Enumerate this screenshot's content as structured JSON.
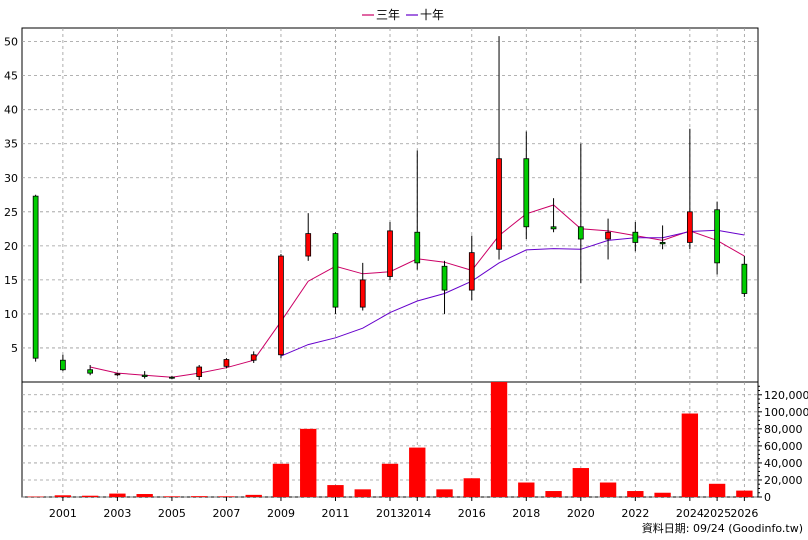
{
  "legend": [
    {
      "label": "三年",
      "color": "#cc0066"
    },
    {
      "label": "十年",
      "color": "#6600cc"
    }
  ],
  "footer_text": "資料日期: 09/24 (Goodinfo.tw)",
  "colors": {
    "up_candle": "#ff0000",
    "down_candle": "#00cc00",
    "volume_bar": "#ff0000",
    "grid": "#999999",
    "axis": "#000000"
  },
  "chart_data": [
    {
      "type": "candlestick",
      "y_ticks": [
        5,
        10,
        15,
        20,
        25,
        30,
        35,
        40,
        45,
        50
      ],
      "ylim": [
        0,
        52
      ],
      "grid": true,
      "legend_position": "top-center",
      "x_tick_labels": [
        {
          "label": "2001",
          "idx": 1
        },
        {
          "label": "2003",
          "idx": 3
        },
        {
          "label": "2005",
          "idx": 5
        },
        {
          "label": "2007",
          "idx": 7
        },
        {
          "label": "2009",
          "idx": 9
        },
        {
          "label": "2011",
          "idx": 11
        },
        {
          "label": "2013",
          "idx": 13
        },
        {
          "label": "2014",
          "idx": 14
        },
        {
          "label": "2016",
          "idx": 16
        },
        {
          "label": "2018",
          "idx": 18
        },
        {
          "label": "2020",
          "idx": 20
        },
        {
          "label": "2022",
          "idx": 22
        },
        {
          "label": "2024",
          "idx": 24
        },
        {
          "label": "2025",
          "idx": 25
        },
        {
          "label": "2026",
          "idx": 26
        }
      ],
      "candles": [
        {
          "idx": 0,
          "open": 27.3,
          "high": 27.5,
          "low": 3.0,
          "close": 3.5
        },
        {
          "idx": 1,
          "open": 3.2,
          "high": 4.0,
          "low": 1.6,
          "close": 1.8
        },
        {
          "idx": 2,
          "open": 1.8,
          "high": 2.5,
          "low": 1.0,
          "close": 1.3
        },
        {
          "idx": 3,
          "open": 1.1,
          "high": 1.3,
          "low": 0.9,
          "close": 1.2
        },
        {
          "idx": 4,
          "open": 1.0,
          "high": 1.6,
          "low": 0.5,
          "close": 0.8
        },
        {
          "idx": 5,
          "open": 0.7,
          "high": 0.9,
          "low": 0.4,
          "close": 0.6
        },
        {
          "idx": 6,
          "open": 0.8,
          "high": 2.5,
          "low": 0.3,
          "close": 2.2
        },
        {
          "idx": 7,
          "open": 2.3,
          "high": 3.5,
          "low": 2.0,
          "close": 3.3
        },
        {
          "idx": 8,
          "open": 3.2,
          "high": 4.5,
          "low": 2.8,
          "close": 4.0
        },
        {
          "idx": 9,
          "open": 4.0,
          "high": 18.8,
          "low": 3.5,
          "close": 18.5
        },
        {
          "idx": 10,
          "open": 18.5,
          "high": 24.8,
          "low": 17.8,
          "close": 21.8
        },
        {
          "idx": 11,
          "open": 21.8,
          "high": 22.0,
          "low": 10.0,
          "close": 11.0
        },
        {
          "idx": 12,
          "open": 11.0,
          "high": 17.5,
          "low": 10.5,
          "close": 15.0
        },
        {
          "idx": 13,
          "open": 15.5,
          "high": 23.5,
          "low": 15.0,
          "close": 22.2
        },
        {
          "idx": 14,
          "open": 22.0,
          "high": 34.0,
          "low": 16.5,
          "close": 17.5
        },
        {
          "idx": 15,
          "open": 17.0,
          "high": 17.8,
          "low": 10.0,
          "close": 13.5
        },
        {
          "idx": 16,
          "open": 13.5,
          "high": 21.5,
          "low": 12.0,
          "close": 19.0
        },
        {
          "idx": 17,
          "open": 19.5,
          "high": 50.8,
          "low": 18.0,
          "close": 32.8
        },
        {
          "idx": 18,
          "open": 32.8,
          "high": 36.8,
          "low": 21.0,
          "close": 22.8
        },
        {
          "idx": 19,
          "open": 22.8,
          "high": 27.0,
          "low": 22.0,
          "close": 22.5
        },
        {
          "idx": 20,
          "open": 22.8,
          "high": 35.0,
          "low": 14.5,
          "close": 21.0
        },
        {
          "idx": 21,
          "open": 21.0,
          "high": 24.0,
          "low": 18.0,
          "close": 22.0
        },
        {
          "idx": 22,
          "open": 22.0,
          "high": 23.5,
          "low": 19.2,
          "close": 20.5
        },
        {
          "idx": 23,
          "open": 20.5,
          "high": 23.0,
          "low": 19.5,
          "close": 20.3
        },
        {
          "idx": 24,
          "open": 20.5,
          "high": 37.2,
          "low": 19.5,
          "close": 25.0
        },
        {
          "idx": 25,
          "open": 25.3,
          "high": 26.5,
          "low": 15.8,
          "close": 17.5
        },
        {
          "idx": 26,
          "open": 17.3,
          "high": 18.5,
          "low": 12.5,
          "close": 13.0
        }
      ],
      "series": [
        {
          "name": "三年",
          "color": "#cc0066",
          "points": [
            [
              2,
              2.2
            ],
            [
              3,
              1.3
            ],
            [
              4,
              1.0
            ],
            [
              5,
              0.7
            ],
            [
              6,
              1.3
            ],
            [
              7,
              2.1
            ],
            [
              8,
              3.2
            ],
            [
              9,
              8.9
            ],
            [
              10,
              14.8
            ],
            [
              11,
              17.0
            ],
            [
              12,
              15.9
            ],
            [
              13,
              16.2
            ],
            [
              14,
              18.1
            ],
            [
              15,
              17.6
            ],
            [
              16,
              16.4
            ],
            [
              17,
              21.5
            ],
            [
              18,
              24.7
            ],
            [
              19,
              26.0
            ],
            [
              20,
              22.5
            ],
            [
              21,
              22.2
            ],
            [
              22,
              21.5
            ],
            [
              23,
              20.8
            ],
            [
              24,
              22.2
            ],
            [
              25,
              20.8
            ],
            [
              26,
              18.5
            ]
          ]
        },
        {
          "name": "十年",
          "color": "#6600cc",
          "points": [
            [
              9,
              3.8
            ],
            [
              10,
              5.5
            ],
            [
              11,
              6.5
            ],
            [
              12,
              7.9
            ],
            [
              13,
              10.2
            ],
            [
              14,
              11.9
            ],
            [
              15,
              13.0
            ],
            [
              16,
              14.8
            ],
            [
              17,
              17.5
            ],
            [
              18,
              19.4
            ],
            [
              19,
              19.6
            ],
            [
              20,
              19.5
            ],
            [
              21,
              20.8
            ],
            [
              22,
              21.2
            ],
            [
              23,
              21.2
            ],
            [
              24,
              22.1
            ],
            [
              25,
              22.3
            ],
            [
              26,
              21.6
            ]
          ]
        }
      ]
    },
    {
      "type": "bar",
      "y_ticks": [
        0,
        20000,
        40000,
        60000,
        80000,
        100000,
        120000
      ],
      "y_tick_labels": [
        "0",
        "20,000",
        "40,000",
        "60,000",
        "80,000",
        "100,000",
        "120,000"
      ],
      "ylim": [
        0,
        135000
      ],
      "grid": true,
      "bars": [
        {
          "idx": 0,
          "value": 500
        },
        {
          "idx": 1,
          "value": 2000
        },
        {
          "idx": 2,
          "value": 1500
        },
        {
          "idx": 3,
          "value": 4000
        },
        {
          "idx": 4,
          "value": 3500
        },
        {
          "idx": 5,
          "value": 800
        },
        {
          "idx": 6,
          "value": 1000
        },
        {
          "idx": 7,
          "value": 800
        },
        {
          "idx": 8,
          "value": 2500
        },
        {
          "idx": 9,
          "value": 39000
        },
        {
          "idx": 10,
          "value": 80000
        },
        {
          "idx": 11,
          "value": 14000
        },
        {
          "idx": 12,
          "value": 9000
        },
        {
          "idx": 13,
          "value": 39000
        },
        {
          "idx": 14,
          "value": 58000
        },
        {
          "idx": 15,
          "value": 9000
        },
        {
          "idx": 16,
          "value": 22000
        },
        {
          "idx": 17,
          "value": 135000
        },
        {
          "idx": 18,
          "value": 17000
        },
        {
          "idx": 19,
          "value": 7000
        },
        {
          "idx": 20,
          "value": 34000
        },
        {
          "idx": 21,
          "value": 17000
        },
        {
          "idx": 22,
          "value": 7000
        },
        {
          "idx": 23,
          "value": 5000
        },
        {
          "idx": 24,
          "value": 98000
        },
        {
          "idx": 25,
          "value": 15500
        },
        {
          "idx": 26,
          "value": 7500
        }
      ]
    }
  ]
}
